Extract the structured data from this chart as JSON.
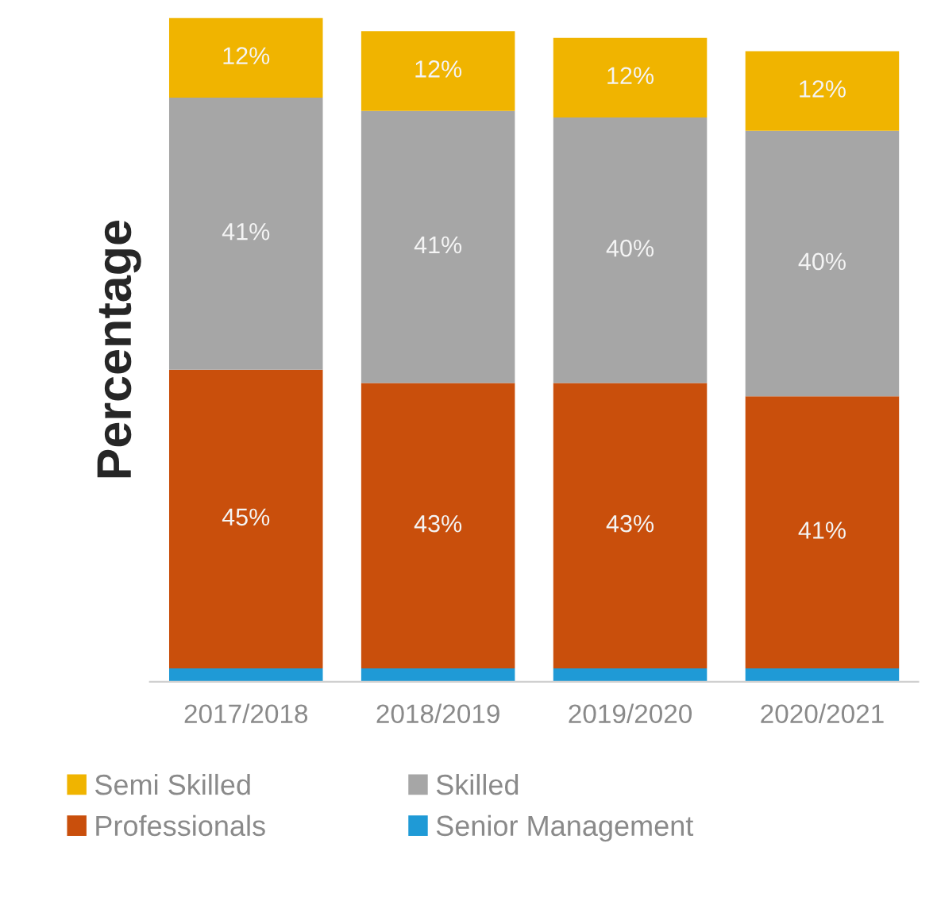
{
  "chart_data": {
    "type": "bar",
    "stacked": true,
    "ylabel": "Percentage",
    "legend": "bottom",
    "categories": [
      "2017/2018",
      "2018/2019",
      "2019/2020",
      "2020/2021"
    ],
    "series": [
      {
        "name": "Senior Management",
        "color": "#1f9ad6",
        "values": [
          2,
          2,
          2,
          2
        ],
        "value_labels": [
          null,
          null,
          null,
          null
        ]
      },
      {
        "name": "Professionals",
        "color": "#c94f0c",
        "values": [
          45,
          43,
          43,
          41
        ],
        "value_labels": [
          "45%",
          "43%",
          "43%",
          "41%"
        ]
      },
      {
        "name": "Skilled",
        "color": "#a6a6a6",
        "values": [
          41,
          41,
          40,
          40
        ],
        "value_labels": [
          "41%",
          "41%",
          "40%",
          "40%"
        ]
      },
      {
        "name": "Semi Skilled",
        "color": "#f0b400",
        "values": [
          12,
          12,
          12,
          12
        ],
        "value_labels": [
          "12%",
          "12%",
          "12%",
          "12%"
        ]
      }
    ]
  }
}
